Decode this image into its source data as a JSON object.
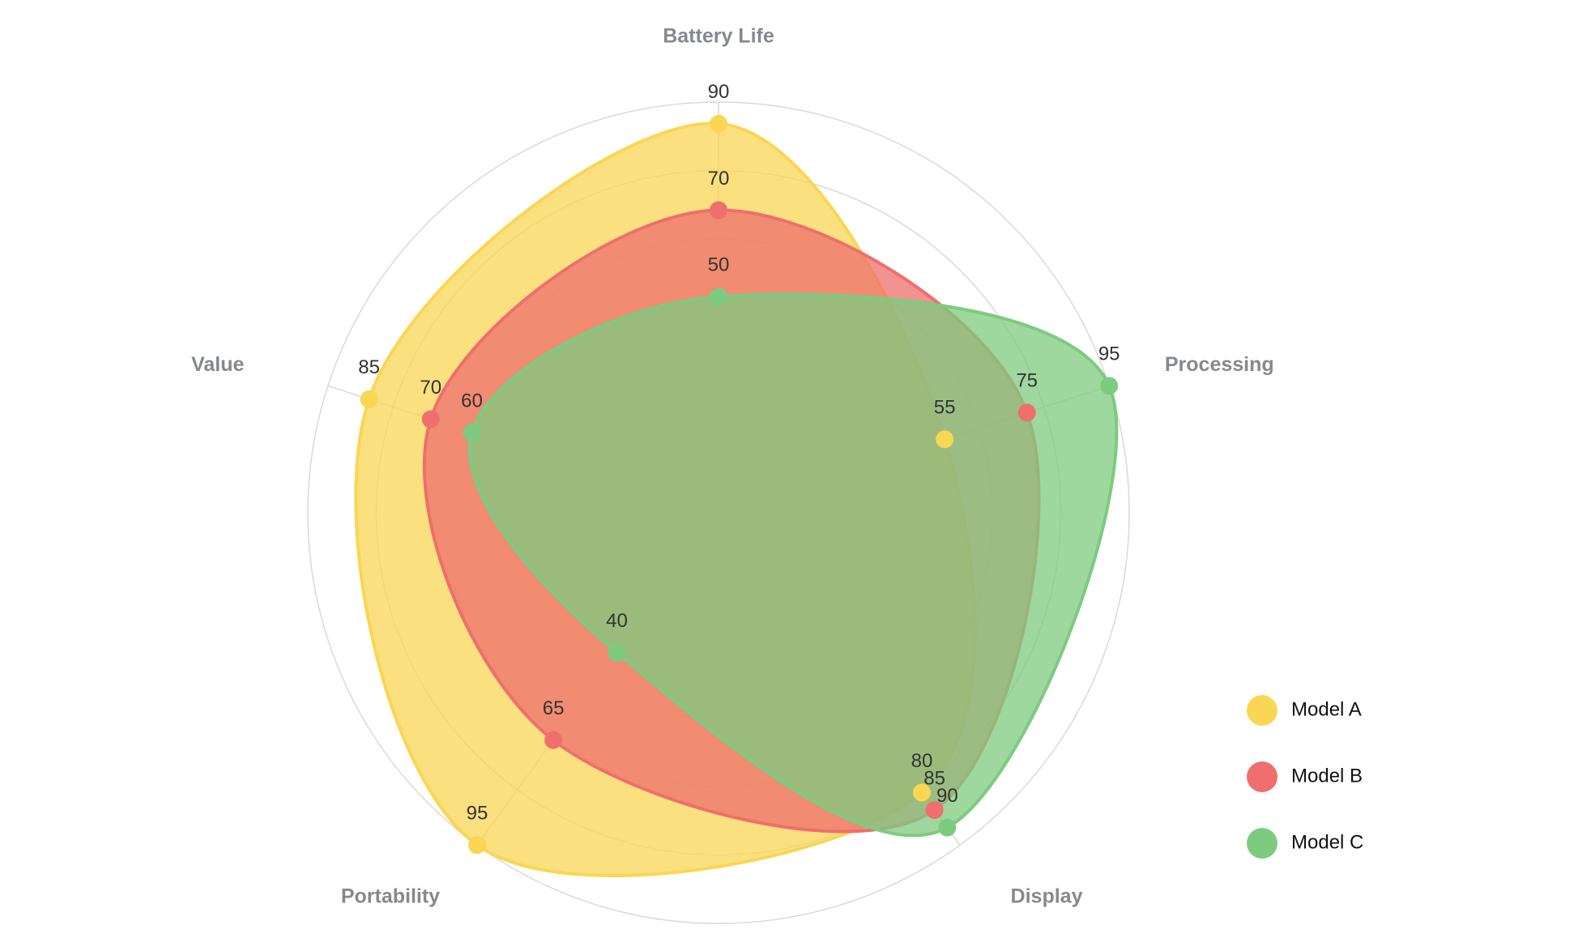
{
  "chart_data": {
    "type": "radar",
    "categories": [
      "Battery Life",
      "Processing",
      "Display",
      "Portability",
      "Value"
    ],
    "rlim": [
      0,
      95
    ],
    "series": [
      {
        "name": "Model A",
        "color": "#f9d654",
        "values": [
          90,
          55,
          80,
          95,
          85
        ]
      },
      {
        "name": "Model B",
        "color": "#ee6f6d",
        "values": [
          70,
          75,
          85,
          65,
          70
        ]
      },
      {
        "name": "Model C",
        "color": "#7dcb7f",
        "values": [
          50,
          95,
          90,
          40,
          60
        ]
      }
    ],
    "grid": true,
    "legend": "bottom-right"
  }
}
